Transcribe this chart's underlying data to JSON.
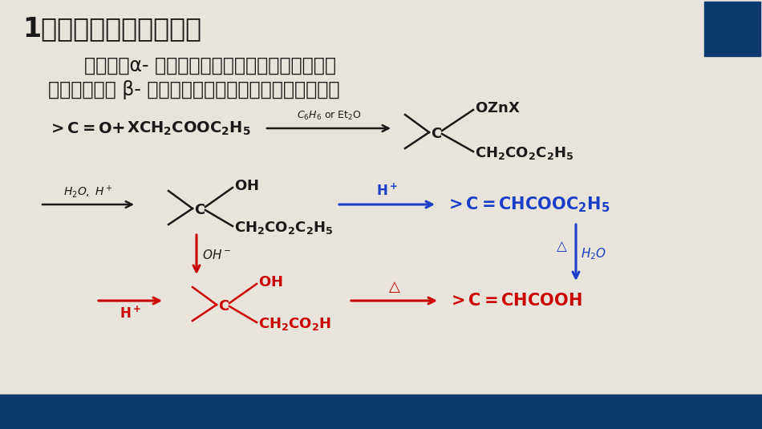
{
  "bg_color": "#E8E4DC",
  "dark_blue": "#0D3A6E",
  "red_color": "#CC0000",
  "blue_color": "#1a3ec8",
  "black_color": "#1A1A1A",
  "title": "1、瑞弗马斯基反应定义",
  "title_fontsize": 24,
  "desc_line1": "      醛或酮、α- 溴（卤）代酸酯、锌在惰性溶剂中互",
  "desc_line2": "相作用，得到 β- 羟基酸酯的反应称为瑞佛马斯基反应。",
  "desc_fontsize": 17,
  "corner_rect_color": "#0D3A6E",
  "bottom_bar_color": "#0D3A6E"
}
